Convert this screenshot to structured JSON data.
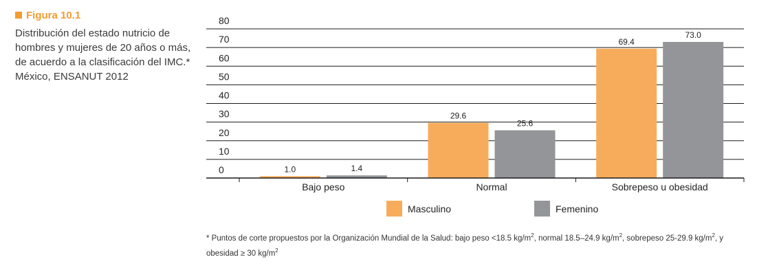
{
  "figure": {
    "label": "Figura 10.1",
    "caption": "Distribución del estado nutricio de hombres y mujeres de 20 años o más, de acuerdo a la clasificación del IMC.* México, ENSANUT 2012"
  },
  "footnote": {
    "part1": "* Puntos de corte propuestos por la Organización Mundial de la Salud: bajo peso <18.5 kg/m",
    "sup1": "2",
    "part2": ", normal 18.5–24.9 kg/m",
    "sup2": "2",
    "part3": ", sobrepeso 25-29.9 kg/m",
    "sup3": "2",
    "part4": ", y obesidad ≥ 30 kg/m",
    "sup4": "2"
  },
  "chart_data": {
    "type": "bar",
    "categories": [
      "Bajo peso",
      "Normal",
      "Sobrepeso u obesidad"
    ],
    "series": [
      {
        "name": "Masculino",
        "color": "#F7AC5C",
        "values": [
          1.0,
          29.6,
          69.4
        ],
        "labels": [
          "1.0",
          "29.6",
          "69.4"
        ]
      },
      {
        "name": "Femenino",
        "color": "#939598",
        "values": [
          1.4,
          25.6,
          73.0
        ],
        "labels": [
          "1.4",
          "25.6",
          "73.0"
        ]
      }
    ],
    "ylim": [
      0,
      80
    ],
    "yticks": [
      "0",
      "10",
      "20",
      "30",
      "40",
      "50",
      "60",
      "70",
      "80"
    ],
    "grid": true,
    "legend": "bottom"
  }
}
